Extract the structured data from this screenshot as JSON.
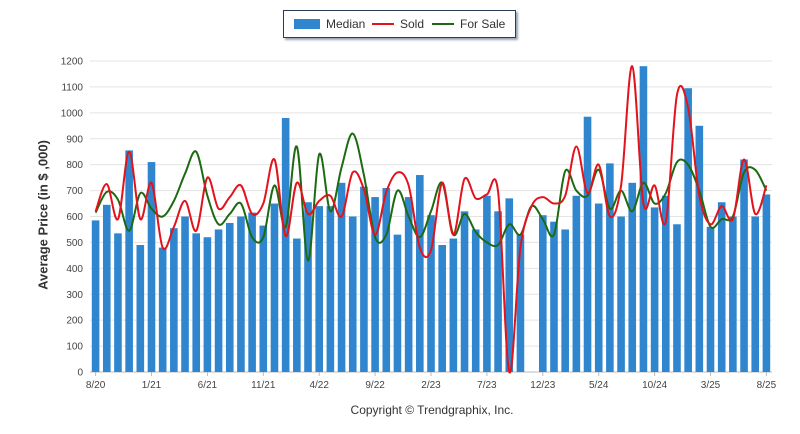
{
  "legend": {
    "median": "Median",
    "sold": "Sold",
    "for_sale": "For Sale"
  },
  "colors": {
    "median": "#2f86cf",
    "sold": "#e3131b",
    "for_sale": "#1d6a12",
    "gridline": "#e3e3e3",
    "legend_border": "#2b3a55"
  },
  "copyright": "Copyright © Trendgraphix, Inc.",
  "chart_data": {
    "type": "bar",
    "ylabel": "Average Price (in $ ,000)",
    "ylim": [
      0,
      1200
    ],
    "yticks": [
      0,
      100,
      200,
      300,
      400,
      500,
      600,
      700,
      800,
      900,
      1000,
      1100,
      1200
    ],
    "xtick_labels": [
      {
        "index": 0,
        "label": "8/20"
      },
      {
        "index": 5,
        "label": "1/21"
      },
      {
        "index": 10,
        "label": "6/21"
      },
      {
        "index": 15,
        "label": "11/21"
      },
      {
        "index": 20,
        "label": "4/22"
      },
      {
        "index": 25,
        "label": "9/22"
      },
      {
        "index": 30,
        "label": "2/23"
      },
      {
        "index": 35,
        "label": "7/23"
      },
      {
        "index": 40,
        "label": "12/23"
      },
      {
        "index": 45,
        "label": "5/24"
      },
      {
        "index": 50,
        "label": "10/24"
      },
      {
        "index": 55,
        "label": "3/25"
      },
      {
        "index": 60,
        "label": "8/25"
      }
    ],
    "legend_position": "top-center",
    "grid": true,
    "series": [
      {
        "name": "Median",
        "type": "bar",
        "values": [
          585,
          645,
          535,
          855,
          490,
          810,
          480,
          555,
          600,
          535,
          520,
          550,
          575,
          600,
          615,
          565,
          650,
          980,
          515,
          655,
          640,
          640,
          730,
          600,
          715,
          675,
          710,
          530,
          675,
          760,
          605,
          490,
          515,
          620,
          550,
          680,
          620,
          670,
          530,
          0,
          605,
          580,
          550,
          680,
          985,
          650,
          805,
          600,
          730,
          1180,
          635,
          680,
          570,
          1095,
          950,
          560,
          655,
          600,
          820,
          600,
          685
        ]
      },
      {
        "name": "Sold",
        "type": "line",
        "values": [
          620,
          725,
          590,
          850,
          590,
          730,
          480,
          560,
          660,
          545,
          750,
          630,
          675,
          720,
          610,
          650,
          820,
          525,
          730,
          610,
          660,
          680,
          600,
          770,
          705,
          530,
          695,
          770,
          720,
          480,
          470,
          730,
          530,
          745,
          670,
          685,
          695,
          0,
          480,
          640,
          675,
          650,
          680,
          870,
          690,
          800,
          600,
          720,
          1180,
          650,
          720,
          580,
          1070,
          1020,
          680,
          570,
          640,
          590,
          820,
          610,
          720
        ]
      },
      {
        "name": "For Sale",
        "type": "line",
        "values": [
          615,
          695,
          665,
          545,
          690,
          630,
          600,
          660,
          765,
          850,
          680,
          570,
          610,
          650,
          520,
          520,
          720,
          560,
          870,
          430,
          840,
          620,
          790,
          920,
          760,
          520,
          530,
          700,
          600,
          520,
          620,
          730,
          530,
          610,
          540,
          500,
          490,
          570,
          530,
          640,
          590,
          530,
          775,
          700,
          680,
          780,
          630,
          700,
          620,
          730,
          650,
          690,
          810,
          800,
          700,
          560,
          590,
          600,
          770,
          780,
          700
        ]
      }
    ]
  }
}
